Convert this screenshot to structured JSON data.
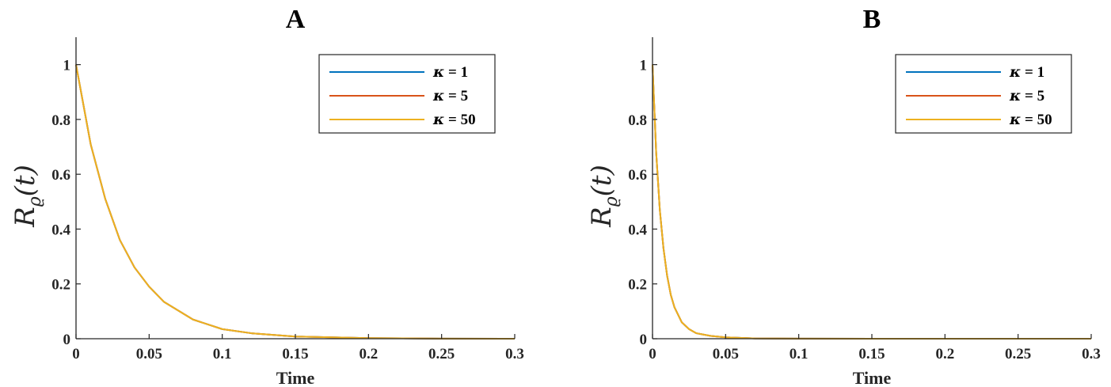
{
  "chart_data": [
    {
      "type": "line",
      "title": "A",
      "xlabel": "Time",
      "ylabel": "R_ϱ(t)",
      "ylabel_parts": {
        "main": "R",
        "sub": "ϱ",
        "args": "(t)"
      },
      "xlim": [
        0,
        0.3
      ],
      "ylim": [
        0,
        1.1
      ],
      "xticks": [
        0,
        0.05,
        0.1,
        0.15,
        0.2,
        0.25,
        0.3
      ],
      "xtick_labels": [
        "0",
        "0.05",
        "0.1",
        "0.15",
        "0.2",
        "0.25",
        "0.3"
      ],
      "yticks": [
        0,
        0.2,
        0.4,
        0.6,
        0.8,
        1
      ],
      "ytick_labels": [
        "0",
        "0.2",
        "0.4",
        "0.6",
        "0.8",
        "1"
      ],
      "legend_position": "top-right",
      "grid": false,
      "series": [
        {
          "name": "κ = 1",
          "legend_kappa": "κ",
          "legend_value": " = 1",
          "color": "#0072BD",
          "x": [
            0,
            0.01,
            0.02,
            0.03,
            0.04,
            0.05,
            0.06,
            0.08,
            0.1,
            0.12,
            0.15,
            0.2,
            0.25,
            0.3
          ],
          "y": [
            1,
            0.71,
            0.51,
            0.36,
            0.26,
            0.19,
            0.135,
            0.07,
            0.035,
            0.02,
            0.008,
            0.002,
            0.0005,
            0.0001
          ]
        },
        {
          "name": "κ = 5",
          "legend_kappa": "κ",
          "legend_value": " = 5",
          "color": "#D95319",
          "x": [
            0,
            0.01,
            0.02,
            0.03,
            0.04,
            0.05,
            0.06,
            0.08,
            0.1,
            0.12,
            0.15,
            0.2,
            0.25,
            0.3
          ],
          "y": [
            1,
            0.71,
            0.51,
            0.36,
            0.26,
            0.19,
            0.135,
            0.07,
            0.035,
            0.02,
            0.008,
            0.002,
            0.0005,
            0.0001
          ]
        },
        {
          "name": "κ = 50",
          "legend_kappa": "κ",
          "legend_value": " = 50",
          "color": "#EDB120",
          "x": [
            0,
            0.01,
            0.02,
            0.03,
            0.04,
            0.05,
            0.06,
            0.08,
            0.1,
            0.12,
            0.15,
            0.2,
            0.25,
            0.3
          ],
          "y": [
            1,
            0.71,
            0.51,
            0.36,
            0.26,
            0.19,
            0.135,
            0.07,
            0.035,
            0.02,
            0.008,
            0.002,
            0.0005,
            0.0001
          ]
        }
      ]
    },
    {
      "type": "line",
      "title": "B",
      "xlabel": "Time",
      "ylabel": "R_ϱ(t)",
      "ylabel_parts": {
        "main": "R",
        "sub": "ϱ",
        "args": "(t)"
      },
      "xlim": [
        0,
        0.3
      ],
      "ylim": [
        0,
        1.1
      ],
      "xticks": [
        0,
        0.05,
        0.1,
        0.15,
        0.2,
        0.25,
        0.3
      ],
      "xtick_labels": [
        "0",
        "0.05",
        "0.1",
        "0.15",
        "0.2",
        "0.25",
        "0.3"
      ],
      "yticks": [
        0,
        0.2,
        0.4,
        0.6,
        0.8,
        1
      ],
      "ytick_labels": [
        "0",
        "0.2",
        "0.4",
        "0.6",
        "0.8",
        "1"
      ],
      "legend_position": "top-right",
      "grid": false,
      "series": [
        {
          "name": "κ = 1",
          "legend_kappa": "κ",
          "legend_value": " = 1",
          "color": "#0072BD",
          "x": [
            0,
            0.0025,
            0.005,
            0.0075,
            0.01,
            0.0125,
            0.015,
            0.02,
            0.025,
            0.03,
            0.04,
            0.05,
            0.07,
            0.1,
            0.15,
            0.2,
            0.3
          ],
          "y": [
            1,
            0.68,
            0.47,
            0.33,
            0.23,
            0.16,
            0.115,
            0.06,
            0.035,
            0.02,
            0.01,
            0.005,
            0.001,
            0.0002,
            0,
            0,
            0
          ]
        },
        {
          "name": "κ = 5",
          "legend_kappa": "κ",
          "legend_value": " = 5",
          "color": "#D95319",
          "x": [
            0,
            0.0025,
            0.005,
            0.0075,
            0.01,
            0.0125,
            0.015,
            0.02,
            0.025,
            0.03,
            0.04,
            0.05,
            0.07,
            0.1,
            0.15,
            0.2,
            0.3
          ],
          "y": [
            1,
            0.68,
            0.47,
            0.33,
            0.23,
            0.16,
            0.115,
            0.06,
            0.035,
            0.02,
            0.01,
            0.005,
            0.001,
            0.0002,
            0,
            0,
            0
          ]
        },
        {
          "name": "κ = 50",
          "legend_kappa": "κ",
          "legend_value": " = 50",
          "color": "#EDB120",
          "x": [
            0,
            0.0025,
            0.005,
            0.0075,
            0.01,
            0.0125,
            0.015,
            0.02,
            0.025,
            0.03,
            0.04,
            0.05,
            0.07,
            0.1,
            0.15,
            0.2,
            0.3
          ],
          "y": [
            1,
            0.68,
            0.47,
            0.33,
            0.23,
            0.16,
            0.115,
            0.06,
            0.035,
            0.02,
            0.01,
            0.005,
            0.001,
            0.0002,
            0,
            0,
            0
          ]
        }
      ]
    }
  ]
}
